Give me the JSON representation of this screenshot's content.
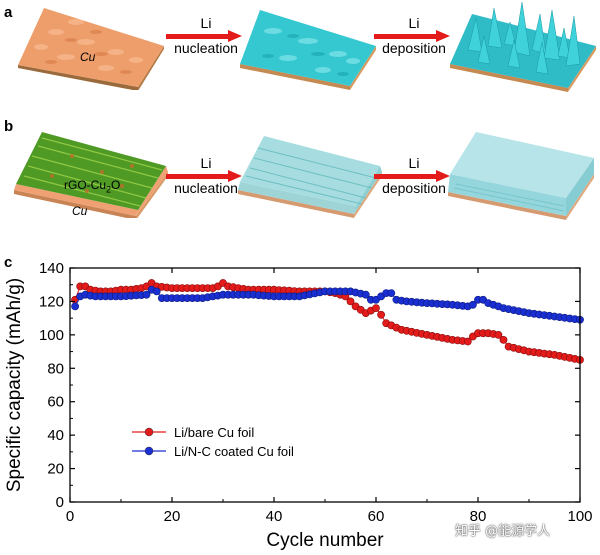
{
  "panels": {
    "a": {
      "letter": "a",
      "substrate_label": "Cu",
      "arrow1_top": "Li",
      "arrow1_bottom": "nucleation",
      "arrow2_top": "Li",
      "arrow2_bottom": "deposition"
    },
    "b": {
      "letter": "b",
      "coating_label": "rGO-Cu",
      "coating_sub": "2",
      "coating_tail": "O",
      "substrate_label": "Cu",
      "arrow1_top": "Li",
      "arrow1_bottom": "nucleation",
      "arrow2_top": "Li",
      "arrow2_bottom": "deposition"
    },
    "c": {
      "letter": "c"
    }
  },
  "watermark": "知乎 @能源学人",
  "colors": {
    "bare": "#e31b1b",
    "coated": "#1a2fd1",
    "arrow": "#e31b1b",
    "cu": "#ee9e6a",
    "li": "#35c8d0",
    "green": "#4f9a25"
  },
  "chart_data": {
    "type": "scatter",
    "xlabel": "Cycle number",
    "ylabel": "Specific capacity (mAh/g)",
    "xlim": [
      0,
      100
    ],
    "ylim": [
      0,
      140
    ],
    "xticks": [
      0,
      20,
      40,
      60,
      80,
      100
    ],
    "yticks": [
      0,
      20,
      40,
      60,
      80,
      100,
      120,
      140
    ],
    "legend_position": "lower-left",
    "series": [
      {
        "name": "Li/bare Cu foil",
        "color": "#e31b1b",
        "anchors": [
          [
            1,
            121
          ],
          [
            2,
            129
          ],
          [
            3,
            129
          ],
          [
            4,
            127
          ],
          [
            6,
            126
          ],
          [
            8,
            126
          ],
          [
            10,
            127
          ],
          [
            12,
            127
          ],
          [
            14,
            128
          ],
          [
            15,
            129
          ],
          [
            16,
            131
          ],
          [
            17,
            129
          ],
          [
            20,
            128
          ],
          [
            25,
            128
          ],
          [
            28,
            128
          ],
          [
            29,
            129
          ],
          [
            30,
            131
          ],
          [
            31,
            129
          ],
          [
            35,
            127
          ],
          [
            40,
            127
          ],
          [
            45,
            126
          ],
          [
            50,
            126
          ],
          [
            52,
            125
          ],
          [
            54,
            123
          ],
          [
            56,
            117
          ],
          [
            58,
            113
          ],
          [
            60,
            116
          ],
          [
            61,
            112
          ],
          [
            62,
            107
          ],
          [
            65,
            103
          ],
          [
            70,
            100
          ],
          [
            75,
            97
          ],
          [
            78,
            96
          ],
          [
            79,
            99
          ],
          [
            80,
            101
          ],
          [
            82,
            101
          ],
          [
            84,
            100
          ],
          [
            85,
            97
          ],
          [
            86,
            93
          ],
          [
            90,
            90
          ],
          [
            95,
            88
          ],
          [
            100,
            85
          ]
        ]
      },
      {
        "name": "Li/N-C coated Cu foil",
        "color": "#1a2fd1",
        "anchors": [
          [
            1,
            117
          ],
          [
            2,
            123
          ],
          [
            3,
            124
          ],
          [
            5,
            123
          ],
          [
            10,
            123
          ],
          [
            15,
            124
          ],
          [
            16,
            127
          ],
          [
            17,
            126
          ],
          [
            18,
            122
          ],
          [
            22,
            122
          ],
          [
            26,
            122
          ],
          [
            28,
            123
          ],
          [
            30,
            124
          ],
          [
            32,
            124
          ],
          [
            36,
            124
          ],
          [
            40,
            123
          ],
          [
            45,
            123
          ],
          [
            50,
            126
          ],
          [
            55,
            126
          ],
          [
            58,
            124
          ],
          [
            59,
            121
          ],
          [
            60,
            121
          ],
          [
            62,
            125
          ],
          [
            63,
            125
          ],
          [
            64,
            121
          ],
          [
            66,
            120
          ],
          [
            70,
            119
          ],
          [
            75,
            118
          ],
          [
            78,
            117
          ],
          [
            79,
            118
          ],
          [
            80,
            121
          ],
          [
            81,
            121
          ],
          [
            82,
            119
          ],
          [
            85,
            116
          ],
          [
            90,
            113
          ],
          [
            95,
            111
          ],
          [
            100,
            109
          ]
        ]
      }
    ]
  }
}
